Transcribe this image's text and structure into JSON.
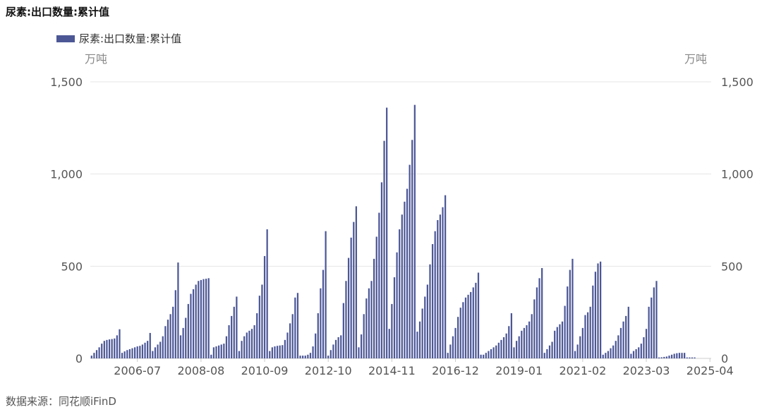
{
  "header": {
    "title": "尿素:出口数量:累计值"
  },
  "footer": {
    "source": "数据来源：同花顺iFinD"
  },
  "colors": {
    "bar": "#4c5796",
    "grid": "#e6e6e6",
    "axis": "#cccccc"
  },
  "chart_data": {
    "type": "bar",
    "title": "尿素:出口数量:累计值",
    "ylabel_left": "万吨",
    "ylabel_right": "万吨",
    "ylim": [
      0,
      1500
    ],
    "yticks": [
      0,
      500,
      1000,
      1500
    ],
    "ytick_labels": [
      "0",
      "500",
      "1,000",
      "1,500"
    ],
    "grid": true,
    "legend_position": "top-left",
    "x_start": "2005-01",
    "x_end": "2025-04",
    "x_tick_labels": [
      "2006-07",
      "2008-08",
      "2010-09",
      "2012-10",
      "2014-11",
      "2016-12",
      "2019-01",
      "2021-02",
      "2023-03",
      "2025-04"
    ],
    "series": [
      {
        "name": "尿素:出口数量:累计值",
        "values": [
          15,
          30,
          45,
          60,
          80,
          95,
          100,
          103,
          105,
          108,
          125,
          158,
          30,
          38,
          45,
          50,
          55,
          60,
          65,
          68,
          75,
          85,
          95,
          138,
          40,
          60,
          75,
          90,
          120,
          175,
          210,
          240,
          280,
          370,
          520,
          125,
          165,
          220,
          295,
          350,
          375,
          400,
          420,
          425,
          430,
          432,
          435,
          20,
          60,
          65,
          70,
          75,
          80,
          120,
          180,
          230,
          280,
          335,
          40,
          95,
          120,
          140,
          150,
          160,
          180,
          245,
          340,
          400,
          555,
          700,
          40,
          60,
          65,
          68,
          70,
          72,
          100,
          140,
          190,
          240,
          330,
          355,
          15,
          15,
          15,
          20,
          30,
          65,
          135,
          245,
          380,
          480,
          690,
          15,
          45,
          75,
          100,
          115,
          125,
          300,
          420,
          545,
          655,
          740,
          825,
          60,
          130,
          240,
          325,
          380,
          420,
          540,
          660,
          790,
          955,
          1180,
          1360,
          160,
          295,
          440,
          575,
          700,
          780,
          850,
          920,
          1050,
          1185,
          1375,
          145,
          200,
          270,
          335,
          400,
          510,
          620,
          690,
          750,
          780,
          820,
          885,
          30,
          75,
          120,
          165,
          225,
          275,
          305,
          330,
          345,
          360,
          385,
          410,
          465,
          20,
          20,
          30,
          40,
          50,
          60,
          70,
          85,
          100,
          115,
          135,
          175,
          245,
          60,
          95,
          120,
          150,
          165,
          180,
          200,
          240,
          320,
          385,
          435,
          490,
          30,
          50,
          70,
          90,
          150,
          170,
          185,
          200,
          285,
          390,
          480,
          540,
          40,
          75,
          120,
          165,
          235,
          250,
          280,
          395,
          470,
          515,
          525,
          20,
          30,
          40,
          55,
          70,
          95,
          125,
          165,
          200,
          230,
          280,
          25,
          40,
          50,
          60,
          80,
          115,
          160,
          280,
          330,
          385,
          420,
          5,
          6,
          8,
          10,
          15,
          20,
          25,
          28,
          30,
          30,
          30,
          5,
          5,
          5,
          5
        ]
      }
    ]
  }
}
